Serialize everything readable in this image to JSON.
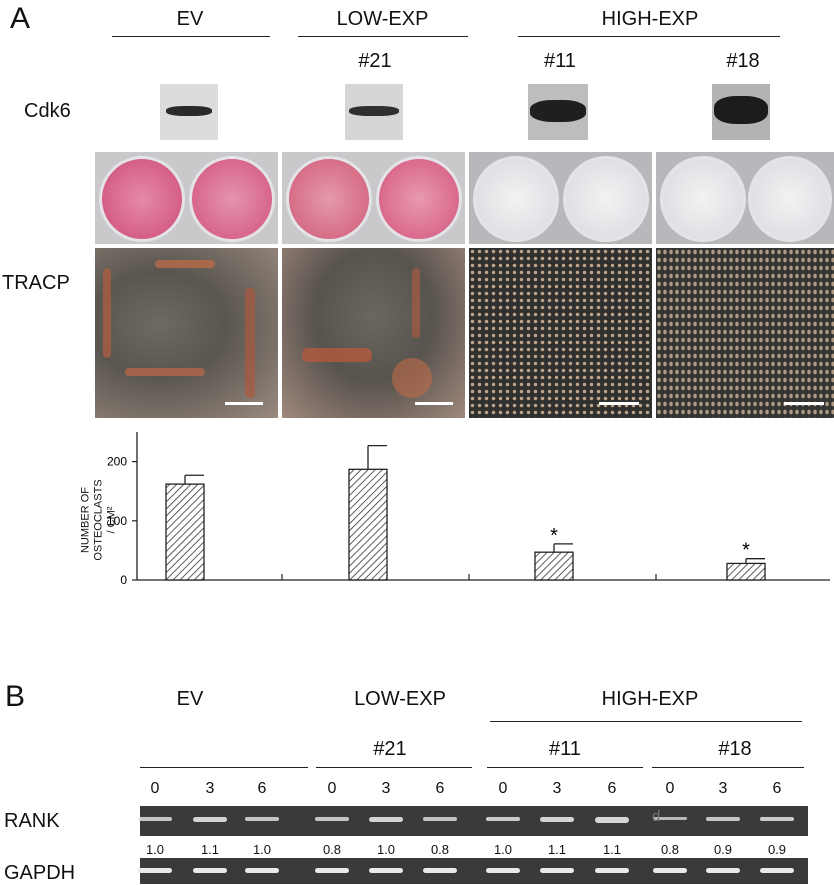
{
  "panel_a": {
    "letter": "A",
    "groups": {
      "ev": "EV",
      "low": "LOW-EXP",
      "high": "HIGH-EXP"
    },
    "clones": {
      "c21": "#21",
      "c11": "#11",
      "c18": "#18"
    },
    "row_labels": {
      "cdk6": "Cdk6",
      "tracp": "TRACP"
    },
    "asterisk": "*"
  },
  "chart_data": {
    "type": "bar",
    "categories": [
      "EV",
      "#21",
      "#11",
      "#18"
    ],
    "values": [
      162,
      187,
      47,
      28
    ],
    "errors": [
      15,
      40,
      14,
      8
    ],
    "significant": [
      false,
      false,
      true,
      true
    ],
    "ylabel": "NUMBER OF OSTEOCLASTS / CM²",
    "ylabel_lines": [
      "NUMBER OF",
      "OSTEOCLASTS",
      "/ CM²"
    ],
    "yticks": [
      0,
      100,
      200
    ],
    "ylim": [
      0,
      250
    ],
    "fill": "hatched"
  },
  "panel_b": {
    "letter": "B",
    "groups": {
      "ev": "EV",
      "low": "LOW-EXP",
      "high": "HIGH-EXP"
    },
    "clones": {
      "c21": "#21",
      "c11": "#11",
      "c18": "#18"
    },
    "times": [
      "0",
      "3",
      "6",
      "0",
      "3",
      "6",
      "0",
      "3",
      "6",
      "0",
      "3",
      "6"
    ],
    "row_labels": {
      "rank": "RANK",
      "gapdh": "GAPDH"
    },
    "rank_ratios": [
      "1.0",
      "1.1",
      "1.0",
      "0.8",
      "1.0",
      "0.8",
      "1.0",
      "1.1",
      "1.1",
      "0.8",
      "0.9",
      "0.9"
    ],
    "stray_mark": "d"
  }
}
